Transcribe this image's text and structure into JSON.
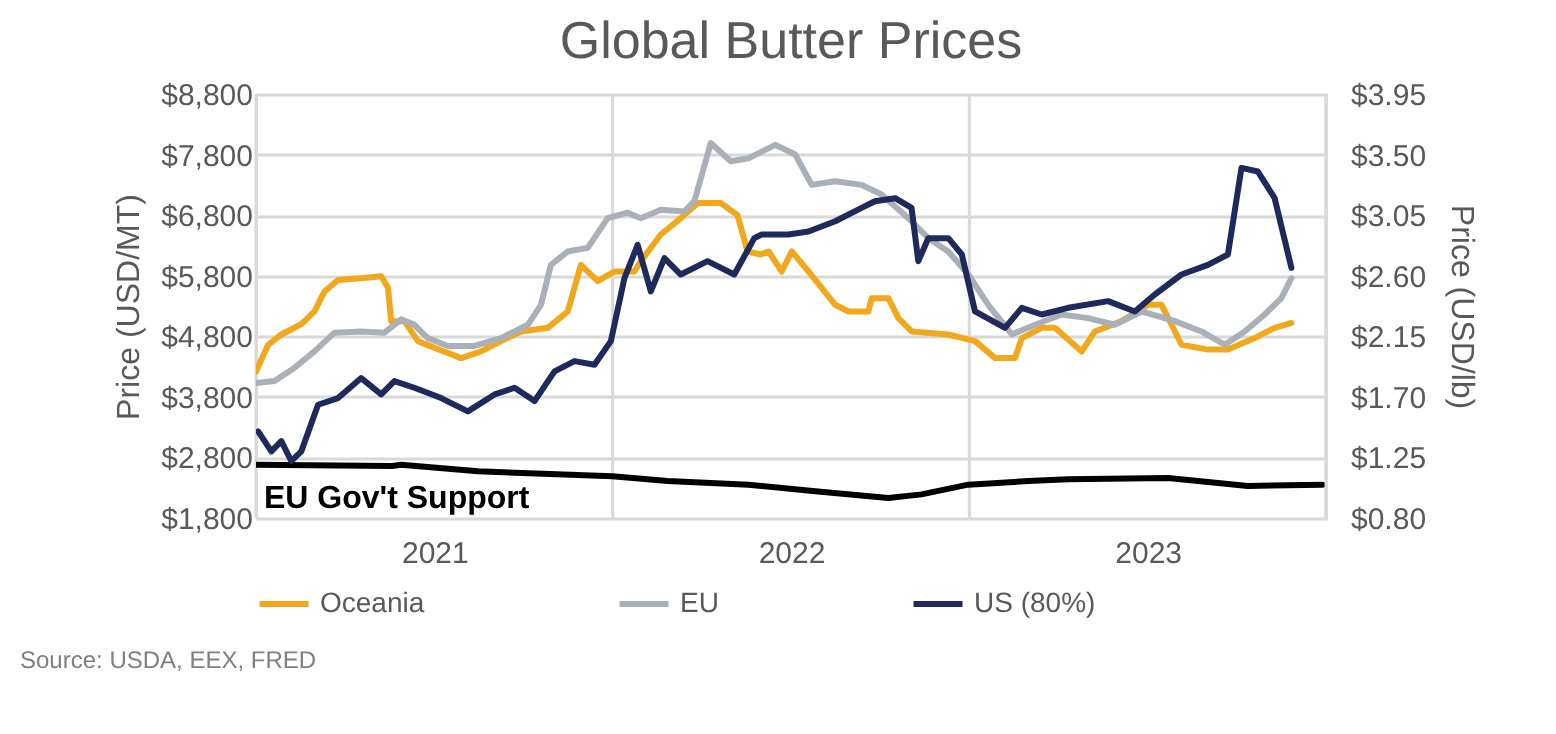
{
  "chart_data": {
    "type": "line",
    "title": "Global Butter Prices",
    "ylabel": "Price (USD/MT)",
    "y2label": "Price (USD/lb)",
    "xlim": [
      2021,
      2024
    ],
    "xticks": [
      {
        "value": 2021,
        "label": null
      },
      {
        "value": 2021.5,
        "label": "2021"
      },
      {
        "value": 2022,
        "label": null
      },
      {
        "value": 2022.5,
        "label": "2022"
      },
      {
        "value": 2023,
        "label": null
      },
      {
        "value": 2023.5,
        "label": "2023"
      },
      {
        "value": 2024,
        "label": null
      }
    ],
    "ylim": [
      1800,
      8800
    ],
    "yticks": [
      {
        "value": 1800,
        "label": "$1,800"
      },
      {
        "value": 2800,
        "label": "$2,800"
      },
      {
        "value": 3800,
        "label": "$3,800"
      },
      {
        "value": 4800,
        "label": "$4,800"
      },
      {
        "value": 5800,
        "label": "$5,800"
      },
      {
        "value": 6800,
        "label": "$6,800"
      },
      {
        "value": 7800,
        "label": "$7,800"
      },
      {
        "value": 8800,
        "label": "$8,800"
      }
    ],
    "y2lim": [
      0.8,
      3.95
    ],
    "y2ticks": [
      {
        "value": 0.8,
        "label": "$0.80"
      },
      {
        "value": 1.25,
        "label": "$1.25"
      },
      {
        "value": 1.7,
        "label": "$1.70"
      },
      {
        "value": 2.15,
        "label": "$2.15"
      },
      {
        "value": 2.6,
        "label": "$2.60"
      },
      {
        "value": 3.05,
        "label": "$3.05"
      },
      {
        "value": 3.5,
        "label": "$3.50"
      },
      {
        "value": 3.95,
        "label": "$3.95"
      }
    ],
    "grid": true,
    "legend": "bottom",
    "line_style": "solid",
    "marker": "none",
    "series": [
      {
        "name": "Oceania",
        "color": "#f2a81d",
        "x": [
          2021.0,
          2021.034,
          2021.071,
          2021.127,
          2021.164,
          2021.192,
          2021.23,
          2021.295,
          2021.351,
          2021.37,
          2021.379,
          2021.416,
          2021.454,
          2021.5,
          2021.575,
          2021.631,
          2021.687,
          2021.743,
          2021.818,
          2021.874,
          2021.911,
          2021.958,
          2022.005,
          2022.061,
          2022.079,
          2022.135,
          2022.191,
          2022.238,
          2022.303,
          2022.35,
          2022.378,
          2022.415,
          2022.437,
          2022.474,
          2022.502,
          2022.549,
          2022.586,
          2022.624,
          2022.661,
          2022.717,
          2022.726,
          2022.773,
          2022.801,
          2022.838,
          2022.941,
          2023.016,
          2023.072,
          2023.128,
          2023.147,
          2023.203,
          2023.24,
          2023.315,
          2023.352,
          2023.427,
          2023.502,
          2023.539,
          2023.595,
          2023.669,
          2023.725,
          2023.8,
          2023.856,
          2023.903
        ],
        "values": [
          4220,
          4660,
          4830,
          5000,
          5210,
          5540,
          5730,
          5760,
          5790,
          5600,
          5050,
          5050,
          4720,
          4610,
          4440,
          4550,
          4720,
          4880,
          4940,
          5210,
          5980,
          5710,
          5870,
          5870,
          6040,
          6480,
          6750,
          7000,
          7000,
          6800,
          6200,
          6150,
          6200,
          5870,
          6200,
          5870,
          5600,
          5320,
          5210,
          5210,
          5430,
          5430,
          5100,
          4880,
          4830,
          4720,
          4440,
          4440,
          4770,
          4940,
          4940,
          4550,
          4880,
          5050,
          5320,
          5320,
          4660,
          4580,
          4580,
          4770,
          4940,
          5020
        ]
      },
      {
        "name": "EU",
        "color": "#a9b0b8",
        "x": [
          2021.0,
          2021.052,
          2021.108,
          2021.164,
          2021.22,
          2021.295,
          2021.36,
          2021.407,
          2021.444,
          2021.482,
          2021.538,
          2021.613,
          2021.687,
          2021.762,
          2021.799,
          2021.827,
          2021.874,
          2021.93,
          2021.986,
          2022.042,
          2022.079,
          2022.135,
          2022.201,
          2022.229,
          2022.275,
          2022.331,
          2022.381,
          2022.456,
          2022.512,
          2022.558,
          2022.624,
          2022.698,
          2022.754,
          2022.829,
          2022.885,
          2022.941,
          2022.997,
          2023.053,
          2023.119,
          2023.184,
          2023.259,
          2023.333,
          2023.408,
          2023.483,
          2023.576,
          2023.651,
          2023.716,
          2023.772,
          2023.828,
          2023.875,
          2023.903
        ],
        "values": [
          4030,
          4060,
          4280,
          4550,
          4860,
          4880,
          4860,
          5080,
          4990,
          4770,
          4640,
          4640,
          4770,
          4990,
          5320,
          5980,
          6200,
          6260,
          6750,
          6840,
          6750,
          6890,
          6860,
          7030,
          7990,
          7690,
          7740,
          7960,
          7800,
          7300,
          7360,
          7300,
          7140,
          6750,
          6420,
          6200,
          5820,
          5320,
          4830,
          4990,
          5160,
          5100,
          4990,
          5210,
          5050,
          4880,
          4660,
          4880,
          5160,
          5430,
          5760
        ]
      },
      {
        "name": "US (80%)",
        "color": "#1f2a5c",
        "x": [
          2021.006,
          2021.043,
          2021.071,
          2021.099,
          2021.127,
          2021.174,
          2021.23,
          2021.295,
          2021.351,
          2021.388,
          2021.444,
          2021.519,
          2021.594,
          2021.669,
          2021.725,
          2021.781,
          2021.837,
          2021.893,
          2021.949,
          2021.995,
          2022.033,
          2022.07,
          2022.107,
          2022.145,
          2022.191,
          2022.266,
          2022.341,
          2022.397,
          2022.418,
          2022.493,
          2022.549,
          2022.624,
          2022.698,
          2022.735,
          2022.792,
          2022.838,
          2022.857,
          2022.885,
          2022.941,
          2022.979,
          2023.016,
          2023.1,
          2023.147,
          2023.203,
          2023.277,
          2023.389,
          2023.464,
          2023.52,
          2023.595,
          2023.669,
          2023.725,
          2023.763,
          2023.809,
          2023.856,
          2023.903
        ],
        "values": [
          3230,
          2900,
          3070,
          2740,
          2900,
          3670,
          3780,
          4110,
          3840,
          4060,
          3950,
          3780,
          3560,
          3840,
          3950,
          3730,
          4220,
          4390,
          4330,
          4720,
          5760,
          6310,
          5540,
          6090,
          5820,
          6040,
          5820,
          6420,
          6480,
          6480,
          6530,
          6700,
          6920,
          7030,
          7080,
          6920,
          6040,
          6420,
          6420,
          6150,
          5210,
          4940,
          5270,
          5160,
          5270,
          5380,
          5210,
          5490,
          5820,
          5980,
          6150,
          7580,
          7520,
          7080,
          5930
        ]
      },
      {
        "color": "#000000",
        "x": [
          2021.0,
          2021.381,
          2021.407,
          2021.622,
          2021.999,
          2022.154,
          2022.381,
          2022.568,
          2022.773,
          2022.866,
          2022.997,
          2023.165,
          2023.277,
          2023.557,
          2023.781,
          2023.99
        ],
        "values": [
          2680,
          2660,
          2680,
          2570,
          2490,
          2410,
          2350,
          2240,
          2130,
          2190,
          2350,
          2410,
          2440,
          2460,
          2330,
          2350
        ]
      }
    ],
    "annotations": [
      "EU Gov't Support",
      "Source: USDA, EEX, FRED"
    ]
  }
}
